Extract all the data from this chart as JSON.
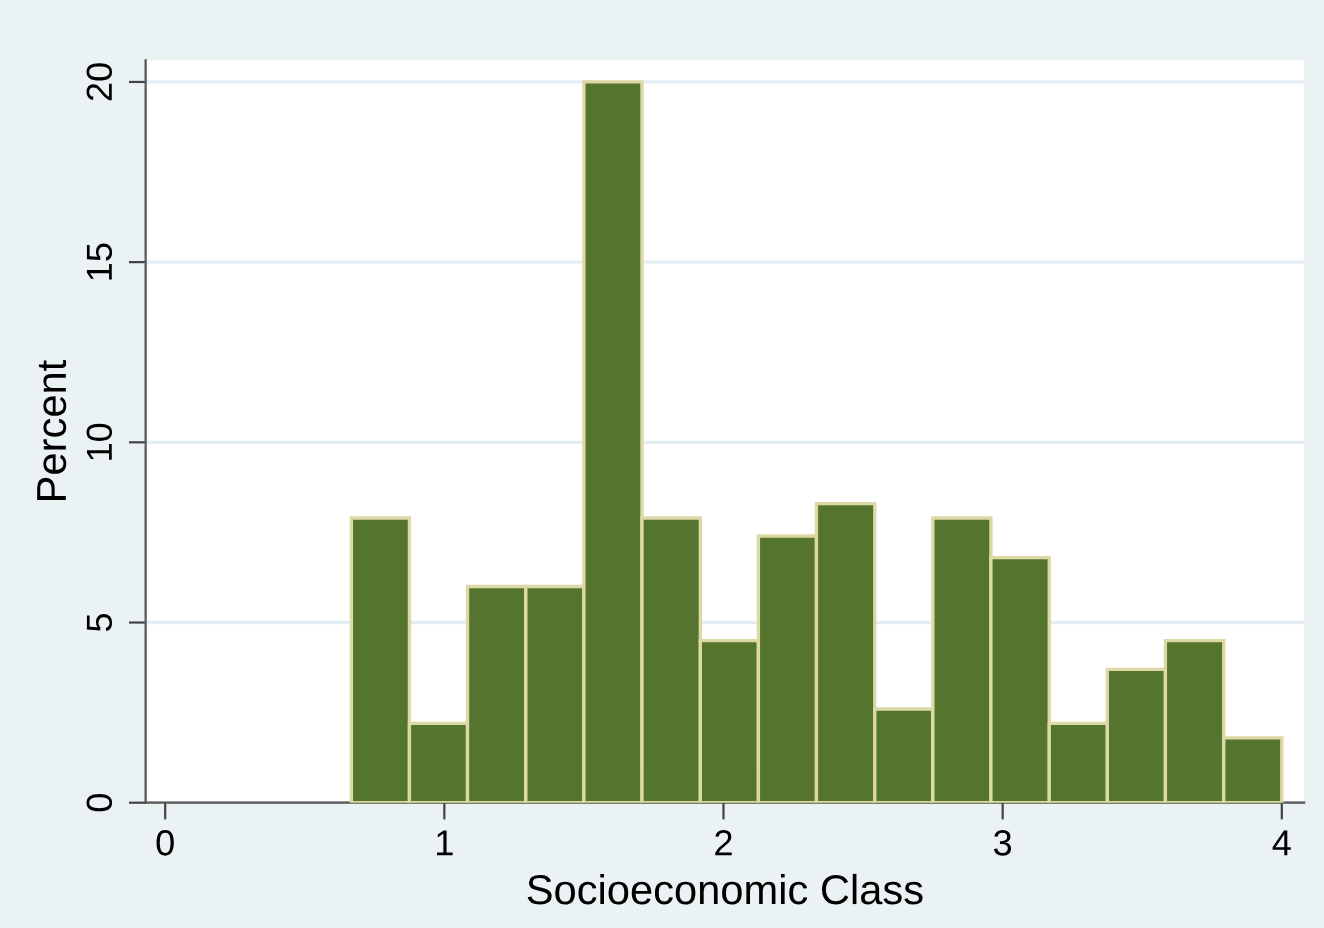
{
  "chart_data": {
    "type": "histogram",
    "xlabel": "Socioeconomic Class",
    "ylabel": "Percent",
    "bins": [
      0.667,
      0.875,
      1.083,
      1.292,
      1.5,
      1.708,
      1.917,
      2.125,
      2.333,
      2.542,
      2.75,
      2.958,
      3.167,
      3.375,
      3.583,
      3.792,
      4.0
    ],
    "values": [
      7.9,
      2.2,
      6.0,
      6.0,
      20.0,
      7.9,
      4.5,
      7.4,
      8.3,
      2.6,
      7.9,
      6.8,
      2.2,
      3.7,
      4.5,
      1.8
    ],
    "color": "#55752f",
    "xlim": [
      -0.07,
      4.08
    ],
    "ylim": [
      0,
      20.6
    ],
    "xticks": [
      0,
      1,
      2,
      3,
      4
    ],
    "yticks": [
      0,
      5,
      10,
      15,
      20
    ],
    "grid": "y",
    "legend": false
  }
}
